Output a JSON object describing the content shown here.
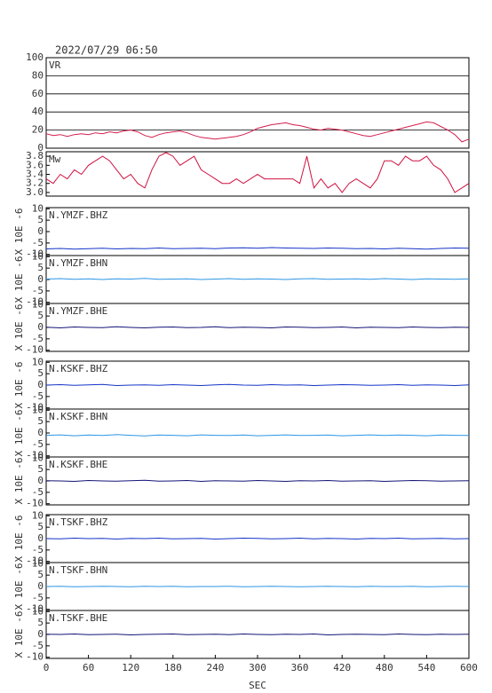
{
  "chart_data": [
    {
      "type": "line",
      "title": "2022/07/29 06:50",
      "xlim": [
        0,
        600
      ],
      "ylim": [
        0,
        100
      ],
      "yticks": [
        0,
        20,
        40,
        60,
        80,
        100
      ],
      "grid": true,
      "x": [
        0,
        10,
        20,
        30,
        40,
        50,
        60,
        70,
        80,
        90,
        100,
        110,
        120,
        130,
        140,
        150,
        160,
        170,
        180,
        190,
        200,
        210,
        220,
        230,
        240,
        250,
        260,
        270,
        280,
        290,
        300,
        310,
        320,
        330,
        340,
        350,
        360,
        370,
        380,
        390,
        400,
        410,
        420,
        430,
        440,
        450,
        460,
        470,
        480,
        490,
        500,
        510,
        520,
        530,
        540,
        550,
        560,
        570,
        580,
        590,
        600
      ],
      "series": [
        {
          "name": "VR",
          "color": "#d41e4c",
          "values": [
            16,
            14,
            15,
            13,
            15,
            16,
            15,
            17,
            16,
            18,
            17,
            19,
            20,
            18,
            14,
            12,
            15,
            17,
            18,
            19,
            17,
            14,
            12,
            11,
            10,
            11,
            12,
            13,
            15,
            18,
            22,
            24,
            26,
            27,
            28,
            26,
            25,
            23,
            21,
            20,
            22,
            21,
            20,
            18,
            16,
            14,
            13,
            15,
            17,
            19,
            21,
            23,
            25,
            27,
            29,
            28,
            24,
            20,
            15,
            7,
            10
          ]
        }
      ]
    },
    {
      "type": "line",
      "xlim": [
        0,
        600
      ],
      "ylim": [
        2.92,
        3.9
      ],
      "yticks": [
        {
          "value": 3,
          "label": "3.0"
        },
        3.2,
        3.4,
        3.6,
        3.8
      ],
      "grid": false,
      "x": [
        0,
        10,
        20,
        30,
        40,
        50,
        60,
        70,
        80,
        90,
        100,
        110,
        120,
        130,
        140,
        150,
        160,
        170,
        180,
        190,
        200,
        210,
        220,
        230,
        240,
        250,
        260,
        270,
        280,
        290,
        300,
        310,
        320,
        330,
        340,
        350,
        360,
        370,
        380,
        390,
        400,
        410,
        420,
        430,
        440,
        450,
        460,
        470,
        480,
        490,
        500,
        510,
        520,
        530,
        540,
        550,
        560,
        570,
        580,
        590,
        600
      ],
      "series": [
        {
          "name": "Mw",
          "color": "#d01040",
          "values": [
            3.3,
            3.2,
            3.4,
            3.3,
            3.5,
            3.4,
            3.6,
            3.7,
            3.8,
            3.7,
            3.5,
            3.3,
            3.4,
            3.2,
            3.1,
            3.5,
            3.8,
            3.88,
            3.8,
            3.6,
            3.7,
            3.8,
            3.5,
            3.4,
            3.3,
            3.2,
            3.2,
            3.3,
            3.2,
            3.3,
            3.4,
            3.3,
            3.3,
            3.3,
            3.3,
            3.3,
            3.2,
            3.8,
            3.1,
            3.3,
            3.1,
            3.2,
            3.0,
            3.2,
            3.3,
            3.2,
            3.1,
            3.3,
            3.7,
            3.7,
            3.6,
            3.8,
            3.7,
            3.7,
            3.8,
            3.6,
            3.5,
            3.3,
            3.0,
            3.1,
            3.2
          ]
        }
      ]
    },
    {
      "type": "line",
      "ylabel": "X 10E -6",
      "xlim": [
        0,
        600
      ],
      "ylim": [
        -10.5,
        10.5
      ],
      "yticks": [
        10,
        5,
        0,
        -5,
        -10
      ],
      "x": [
        0,
        20,
        40,
        60,
        80,
        100,
        120,
        140,
        160,
        180,
        200,
        220,
        240,
        260,
        280,
        300,
        320,
        340,
        360,
        380,
        400,
        420,
        440,
        460,
        480,
        500,
        520,
        540,
        560,
        580,
        600
      ],
      "series": [
        {
          "name": "N.YMZF.BHZ",
          "color": "#1434c8",
          "values": [
            -7.6,
            -7.4,
            -7.7,
            -7.5,
            -7.3,
            -7.6,
            -7.4,
            -7.5,
            -7.2,
            -7.5,
            -7.4,
            -7.3,
            -7.5,
            -7.2,
            -7.1,
            -7.3,
            -7.0,
            -7.2,
            -7.3,
            -7.4,
            -7.2,
            -7.3,
            -7.5,
            -7.4,
            -7.6,
            -7.3,
            -7.5,
            -7.7,
            -7.4,
            -7.2,
            -7.3
          ]
        }
      ]
    },
    {
      "type": "line",
      "ylabel": "X 10E -6",
      "xlim": [
        0,
        600
      ],
      "ylim": [
        -10.5,
        10.5
      ],
      "yticks": [
        10,
        5,
        0,
        -5,
        -10
      ],
      "x": [
        0,
        20,
        40,
        60,
        80,
        100,
        120,
        140,
        160,
        180,
        200,
        220,
        240,
        260,
        280,
        300,
        320,
        340,
        360,
        380,
        400,
        420,
        440,
        460,
        480,
        500,
        520,
        540,
        560,
        580,
        600
      ],
      "series": [
        {
          "name": "N.YMZF.BHN",
          "color": "#2c96e6",
          "values": [
            0.2,
            0.4,
            0.1,
            0.3,
            0.0,
            0.3,
            0.2,
            0.5,
            0.1,
            0.2,
            0.3,
            0.0,
            0.2,
            0.4,
            0.1,
            0.3,
            0.2,
            0.0,
            0.3,
            0.4,
            0.1,
            0.2,
            0.3,
            0.1,
            0.4,
            0.2,
            0.0,
            0.3,
            0.2,
            0.1,
            0.3
          ]
        }
      ]
    },
    {
      "type": "line",
      "ylabel": "X 10E -6",
      "xlim": [
        0,
        600
      ],
      "ylim": [
        -10.5,
        10.5
      ],
      "yticks": [
        10,
        5,
        0,
        -5,
        -10
      ],
      "x": [
        0,
        20,
        40,
        60,
        80,
        100,
        120,
        140,
        160,
        180,
        200,
        220,
        240,
        260,
        280,
        300,
        320,
        340,
        360,
        380,
        400,
        420,
        440,
        460,
        480,
        500,
        520,
        540,
        560,
        580,
        600
      ],
      "series": [
        {
          "name": "N.YMZF.BHE",
          "color": "#141478",
          "values": [
            0.1,
            -0.2,
            0.2,
            0.0,
            -0.1,
            0.3,
            0.0,
            -0.2,
            0.1,
            0.2,
            -0.1,
            0.0,
            0.3,
            -0.1,
            0.1,
            0.0,
            -0.2,
            0.2,
            0.1,
            -0.1,
            0.0,
            0.2,
            -0.2,
            0.1,
            0.0,
            -0.1,
            0.2,
            0.0,
            -0.1,
            0.1,
            0.0
          ]
        }
      ]
    },
    {
      "type": "line",
      "ylabel": "X 10E -6",
      "xlim": [
        0,
        600
      ],
      "ylim": [
        -10.5,
        10.5
      ],
      "yticks": [
        10,
        5,
        0,
        -5,
        -10
      ],
      "x": [
        0,
        20,
        40,
        60,
        80,
        100,
        120,
        140,
        160,
        180,
        200,
        220,
        240,
        260,
        280,
        300,
        320,
        340,
        360,
        380,
        400,
        420,
        440,
        460,
        480,
        500,
        520,
        540,
        560,
        580,
        600
      ],
      "series": [
        {
          "name": "N.KSKF.BHZ",
          "color": "#1434c8",
          "values": [
            0.0,
            0.2,
            -0.1,
            0.1,
            0.3,
            -0.2,
            0.0,
            0.1,
            -0.1,
            0.2,
            0.0,
            -0.2,
            0.1,
            0.3,
            0.0,
            -0.1,
            0.2,
            0.0,
            0.1,
            -0.2,
            0.0,
            0.2,
            0.1,
            -0.1,
            0.0,
            0.2,
            -0.1,
            0.1,
            0.0,
            -0.2,
            0.1
          ]
        }
      ]
    },
    {
      "type": "line",
      "ylabel": "X 10E -6",
      "xlim": [
        0,
        600
      ],
      "ylim": [
        -10.5,
        10.5
      ],
      "yticks": [
        10,
        5,
        0,
        -5,
        -10
      ],
      "x": [
        0,
        20,
        40,
        60,
        80,
        100,
        120,
        140,
        160,
        180,
        200,
        220,
        240,
        260,
        280,
        300,
        320,
        340,
        360,
        380,
        400,
        420,
        440,
        460,
        480,
        500,
        520,
        540,
        560,
        580,
        600
      ],
      "series": [
        {
          "name": "N.KSKF.BHN",
          "color": "#2c96e6",
          "values": [
            -1.0,
            -0.8,
            -1.2,
            -0.9,
            -1.1,
            -0.7,
            -1.0,
            -1.3,
            -0.9,
            -1.0,
            -1.2,
            -0.8,
            -1.0,
            -1.1,
            -0.9,
            -1.2,
            -1.0,
            -0.8,
            -1.1,
            -1.0,
            -0.9,
            -1.2,
            -1.0,
            -0.8,
            -1.1,
            -0.9,
            -1.0,
            -1.2,
            -0.9,
            -1.0,
            -1.1
          ]
        }
      ]
    },
    {
      "type": "line",
      "ylabel": "X 10E -6",
      "xlim": [
        0,
        600
      ],
      "ylim": [
        -10.5,
        10.5
      ],
      "yticks": [
        10,
        5,
        0,
        -5,
        -10
      ],
      "x": [
        0,
        20,
        40,
        60,
        80,
        100,
        120,
        140,
        160,
        180,
        200,
        220,
        240,
        260,
        280,
        300,
        320,
        340,
        360,
        380,
        400,
        420,
        440,
        460,
        480,
        500,
        520,
        540,
        560,
        580,
        600
      ],
      "series": [
        {
          "name": "N.KSKF.BHE",
          "color": "#141478",
          "values": [
            0.1,
            0.0,
            -0.2,
            0.2,
            0.0,
            -0.1,
            0.1,
            0.3,
            -0.1,
            0.0,
            0.2,
            -0.2,
            0.1,
            0.0,
            -0.1,
            0.2,
            0.0,
            -0.2,
            0.1,
            0.0,
            0.2,
            -0.1,
            0.0,
            0.1,
            -0.2,
            0.0,
            0.2,
            0.1,
            -0.1,
            0.0,
            0.1
          ]
        }
      ]
    },
    {
      "type": "line",
      "ylabel": "X 10E -6",
      "xlim": [
        0,
        600
      ],
      "ylim": [
        -10.5,
        10.5
      ],
      "yticks": [
        10,
        5,
        0,
        -5,
        -10
      ],
      "x": [
        0,
        20,
        40,
        60,
        80,
        100,
        120,
        140,
        160,
        180,
        200,
        220,
        240,
        260,
        280,
        300,
        320,
        340,
        360,
        380,
        400,
        420,
        440,
        460,
        480,
        500,
        520,
        540,
        560,
        580,
        600
      ],
      "series": [
        {
          "name": "N.TSKF.BHZ",
          "color": "#1434c8",
          "values": [
            0.0,
            -0.1,
            0.2,
            0.0,
            0.1,
            -0.2,
            0.1,
            0.0,
            0.2,
            -0.1,
            0.0,
            0.1,
            -0.2,
            0.0,
            0.2,
            0.1,
            -0.1,
            0.0,
            0.2,
            -0.1,
            0.1,
            0.0,
            -0.2,
            0.1,
            0.0,
            0.2,
            -0.1,
            0.0,
            0.1,
            -0.1,
            0.0
          ]
        }
      ]
    },
    {
      "type": "line",
      "ylabel": "X 10E -6",
      "xlim": [
        0,
        600
      ],
      "ylim": [
        -10.5,
        10.5
      ],
      "yticks": [
        10,
        5,
        0,
        -5,
        -10
      ],
      "x": [
        0,
        20,
        40,
        60,
        80,
        100,
        120,
        140,
        160,
        180,
        200,
        220,
        240,
        260,
        280,
        300,
        320,
        340,
        360,
        380,
        400,
        420,
        440,
        460,
        480,
        500,
        520,
        540,
        560,
        580,
        600
      ],
      "series": [
        {
          "name": "N.TSKF.BHN",
          "color": "#2c96e6",
          "values": [
            0.0,
            0.1,
            -0.1,
            0.0,
            0.1,
            0.0,
            -0.1,
            0.1,
            0.0,
            0.1,
            -0.1,
            0.0,
            0.0,
            0.1,
            -0.1,
            0.0,
            0.1,
            0.0,
            -0.1,
            0.0,
            0.1,
            0.0,
            -0.1,
            0.1,
            0.0,
            0.0,
            0.1,
            -0.1,
            0.0,
            0.1,
            0.0
          ]
        }
      ]
    },
    {
      "type": "line",
      "ylabel": "X 10E -6",
      "xlabel": "SEC",
      "xlim": [
        0,
        600
      ],
      "ylim": [
        -10.5,
        10.5
      ],
      "yticks": [
        10,
        5,
        0,
        -5,
        -10
      ],
      "xticks": [
        0,
        60,
        120,
        180,
        240,
        300,
        360,
        420,
        480,
        540,
        600
      ],
      "x": [
        0,
        20,
        40,
        60,
        80,
        100,
        120,
        140,
        160,
        180,
        200,
        220,
        240,
        260,
        280,
        300,
        320,
        340,
        360,
        380,
        400,
        420,
        440,
        460,
        480,
        500,
        520,
        540,
        560,
        580,
        600
      ],
      "series": [
        {
          "name": "N.TSKF.BHE",
          "color": "#141478",
          "values": [
            0.1,
            0.0,
            0.2,
            -0.1,
            0.0,
            0.1,
            -0.2,
            0.0,
            0.1,
            0.2,
            -0.1,
            0.0,
            0.1,
            -0.1,
            0.2,
            0.0,
            -0.1,
            0.1,
            0.0,
            0.2,
            -0.2,
            0.0,
            0.1,
            0.0,
            -0.1,
            0.2,
            0.0,
            -0.1,
            0.1,
            0.0,
            0.1
          ]
        }
      ]
    }
  ]
}
